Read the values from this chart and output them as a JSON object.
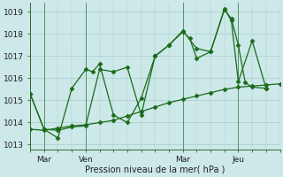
{
  "bg_color": "#cce8e8",
  "grid_color": "#aacccc",
  "line_color": "#1a6b1a",
  "title": "Pression niveau de la mer( hPa )",
  "ylim": [
    1012.8,
    1019.4
  ],
  "yticks": [
    1013,
    1014,
    1015,
    1016,
    1017,
    1018,
    1019
  ],
  "xlim": [
    0,
    108
  ],
  "x_tick_positions": [
    6,
    24,
    66,
    90
  ],
  "x_tick_labels": [
    "Mar",
    "Ven",
    "Mar",
    "Jeu"
  ],
  "x_vline_positions": [
    6,
    24,
    66,
    90
  ],
  "series1_x": [
    0,
    6,
    12,
    18,
    24,
    30,
    36,
    42,
    48,
    54,
    60,
    66,
    72,
    78,
    84,
    90,
    96,
    102,
    108
  ],
  "series1_y": [
    1013.7,
    1013.65,
    1013.75,
    1013.85,
    1013.9,
    1014.0,
    1014.1,
    1014.3,
    1014.5,
    1014.7,
    1014.9,
    1015.05,
    1015.2,
    1015.35,
    1015.5,
    1015.6,
    1015.65,
    1015.7,
    1015.75
  ],
  "series2_x": [
    0,
    6,
    12,
    18,
    24,
    27,
    30,
    36,
    42,
    48,
    54,
    60,
    66,
    69,
    72,
    78,
    84,
    87,
    90,
    93,
    96,
    102
  ],
  "series2_y": [
    1015.3,
    1013.7,
    1013.3,
    1015.55,
    1016.4,
    1016.3,
    1016.65,
    1014.35,
    1014.0,
    1015.1,
    1017.0,
    1017.5,
    1018.1,
    1017.8,
    1016.9,
    1017.2,
    1019.1,
    1018.7,
    1017.5,
    1015.8,
    1015.6,
    1015.55
  ],
  "series3_x": [
    0,
    6,
    12,
    18,
    24,
    30,
    36,
    42,
    48,
    54,
    60,
    66,
    72,
    78,
    84,
    87,
    90,
    96,
    102
  ],
  "series3_y": [
    1015.3,
    1013.7,
    1013.65,
    1013.8,
    1013.85,
    1016.4,
    1016.3,
    1016.5,
    1014.35,
    1017.0,
    1017.5,
    1018.15,
    1017.35,
    1017.2,
    1019.15,
    1018.6,
    1015.85,
    1017.7,
    1015.55
  ]
}
